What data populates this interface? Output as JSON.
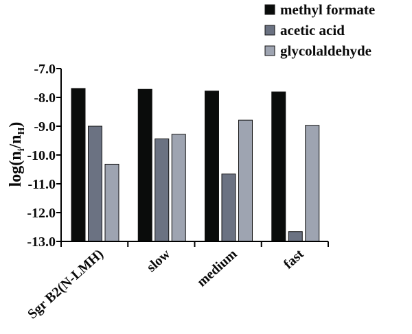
{
  "chart_data": {
    "type": "bar",
    "title": "",
    "xlabel": "",
    "ylabel": "log(n_i/n_H)",
    "ylabel_parts": {
      "main": "log(n",
      "sub1": "i",
      "mid": "/n",
      "sub2": "H",
      "end": ")"
    },
    "ylim": [
      -13.0,
      -7.0
    ],
    "yticks": [
      "-7.0",
      "-8.0",
      "-9.0",
      "-10.0",
      "-11.0",
      "-12.0",
      "-13.0"
    ],
    "ytick_values": [
      -7,
      -8,
      -9,
      -10,
      -11,
      -12,
      -13
    ],
    "categories": [
      "Sgr B2(N-LMH)",
      "slow",
      "medium",
      "fast"
    ],
    "legend_position": "top-right",
    "grid": false,
    "series": [
      {
        "name": "methyl formate",
        "color": "#0a0c0b",
        "values": [
          -7.69,
          -7.72,
          -7.78,
          -7.81
        ]
      },
      {
        "name": "acetic acid",
        "color": "#6b7282",
        "values": [
          -9.0,
          -9.44,
          -10.66,
          -12.66
        ]
      },
      {
        "name": "glycolaldehyde",
        "color": "#9ea4b1",
        "values": [
          -10.32,
          -9.28,
          -8.79,
          -8.97
        ]
      }
    ]
  }
}
